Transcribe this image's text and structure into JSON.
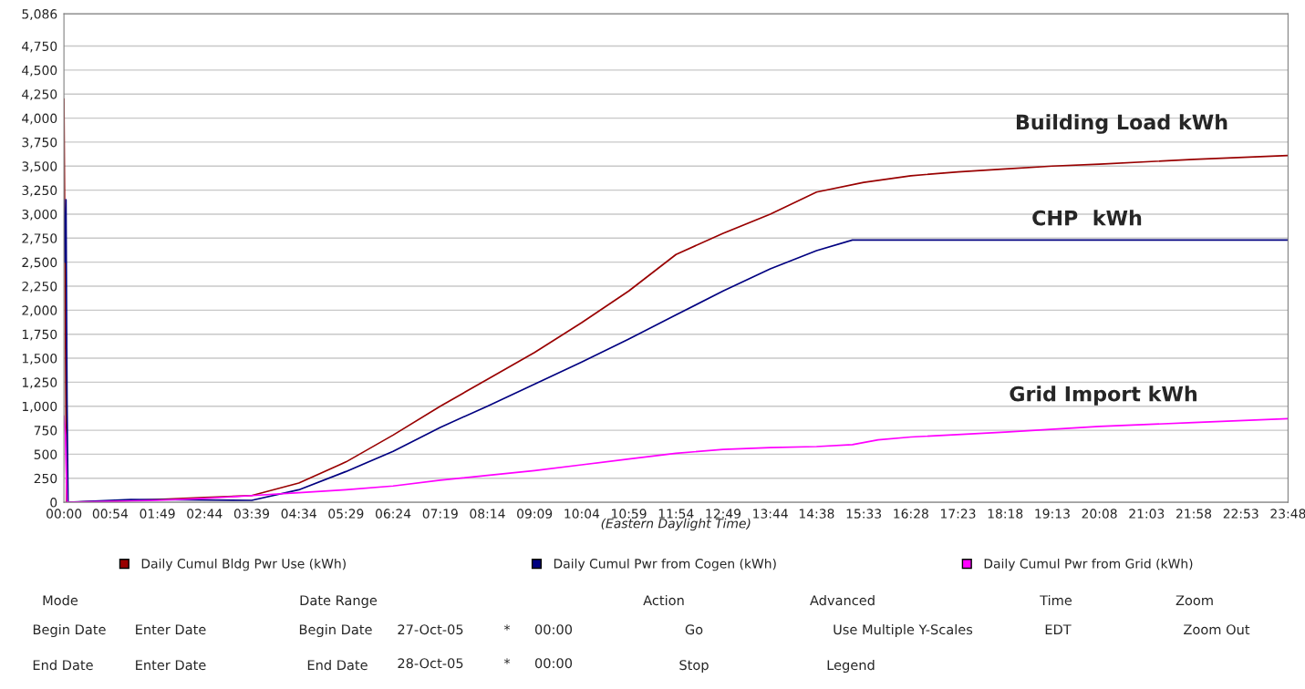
{
  "chart_data": {
    "type": "line",
    "xlabel": "(Eastern Daylight Time)",
    "grid": "y",
    "legend": "bottom",
    "marker": "none",
    "line_style": "solid",
    "xlim": [
      0,
      23.8
    ],
    "ylim": [
      0,
      5086
    ],
    "xticks": [
      {
        "value": 0,
        "label": "00:00"
      },
      {
        "value": 0.9,
        "label": "00:54"
      },
      {
        "value": 1.817,
        "label": "01:49"
      },
      {
        "value": 2.733,
        "label": "02:44"
      },
      {
        "value": 3.65,
        "label": "03:39"
      },
      {
        "value": 4.567,
        "label": "04:34"
      },
      {
        "value": 5.483,
        "label": "05:29"
      },
      {
        "value": 6.4,
        "label": "06:24"
      },
      {
        "value": 7.317,
        "label": "07:19"
      },
      {
        "value": 8.233,
        "label": "08:14"
      },
      {
        "value": 9.15,
        "label": "09:09"
      },
      {
        "value": 10.067,
        "label": "10:04"
      },
      {
        "value": 10.983,
        "label": "10:59"
      },
      {
        "value": 11.9,
        "label": "11:54"
      },
      {
        "value": 12.817,
        "label": "12:49"
      },
      {
        "value": 13.733,
        "label": "13:44"
      },
      {
        "value": 14.633,
        "label": "14:38"
      },
      {
        "value": 15.55,
        "label": "15:33"
      },
      {
        "value": 16.467,
        "label": "16:28"
      },
      {
        "value": 17.383,
        "label": "17:23"
      },
      {
        "value": 18.3,
        "label": "18:18"
      },
      {
        "value": 19.217,
        "label": "19:13"
      },
      {
        "value": 20.133,
        "label": "20:08"
      },
      {
        "value": 21.05,
        "label": "21:03"
      },
      {
        "value": 21.967,
        "label": "21:58"
      },
      {
        "value": 22.883,
        "label": "22:53"
      },
      {
        "value": 23.8,
        "label": "23:48"
      }
    ],
    "yticks": [
      0,
      250,
      500,
      750,
      {
        "value": 1000,
        "label": "1,000"
      },
      {
        "value": 1250,
        "label": "1,250"
      },
      {
        "value": 1500,
        "label": "1,500"
      },
      {
        "value": 1750,
        "label": "1,750"
      },
      {
        "value": 2000,
        "label": "2,000"
      },
      {
        "value": 2250,
        "label": "2,250"
      },
      {
        "value": 2500,
        "label": "2,500"
      },
      {
        "value": 2750,
        "label": "2,750"
      },
      {
        "value": 3000,
        "label": "3,000"
      },
      {
        "value": 3250,
        "label": "3,250"
      },
      {
        "value": 3500,
        "label": "3,500"
      },
      {
        "value": 3750,
        "label": "3,750"
      },
      {
        "value": 4000,
        "label": "4,000"
      },
      {
        "value": 4250,
        "label": "4,250"
      },
      {
        "value": 4500,
        "label": "4,500"
      },
      {
        "value": 4750,
        "label": "4,750"
      },
      {
        "value": 5086,
        "label": "5,086"
      }
    ],
    "series": [
      {
        "name": "Daily Cumul Bldg Pwr Use (kWh)",
        "color": "#990000",
        "x": [
          0,
          0.05,
          0.9,
          1.817,
          2.733,
          3.65,
          4.567,
          5.483,
          6.4,
          7.317,
          8.233,
          9.15,
          10.067,
          10.983,
          11.9,
          12.817,
          13.733,
          14.633,
          15.55,
          16.467,
          17.383,
          18.3,
          19.217,
          20.133,
          21.967,
          23.8
        ],
        "values": [
          4200,
          0,
          10,
          30,
          50,
          70,
          200,
          420,
          700,
          1000,
          1280,
          1560,
          1870,
          2200,
          2580,
          2800,
          3000,
          3230,
          3330,
          3400,
          3440,
          3470,
          3500,
          3520,
          3570,
          3610
        ]
      },
      {
        "name": "Daily Cumul Pwr from Cogen (kWh)",
        "color": "#000080",
        "x": [
          0,
          0.02,
          0.04,
          0.06,
          0.08,
          1.3,
          3.65,
          4.567,
          5.483,
          6.4,
          7.317,
          8.233,
          9.15,
          10.067,
          10.983,
          11.9,
          12.817,
          13.733,
          14.633,
          15.33,
          23.8
        ],
        "values": [
          3150,
          2500,
          3150,
          1050,
          0,
          30,
          20,
          130,
          320,
          530,
          780,
          1000,
          1230,
          1460,
          1700,
          1950,
          2200,
          2430,
          2620,
          2730,
          2730
        ]
      },
      {
        "name": "Daily Cumul Pwr from Grid (kWh)",
        "color": "#ff00ff",
        "x": [
          0,
          0.03,
          0.06,
          1.817,
          2.733,
          3.65,
          4.567,
          5.483,
          6.4,
          7.317,
          8.233,
          9.15,
          10.067,
          10.983,
          11.9,
          12.817,
          13.733,
          14.633,
          15.33,
          15.83,
          16.467,
          18.3,
          20.133,
          21.967,
          23.8
        ],
        "values": [
          900,
          700,
          0,
          20,
          40,
          70,
          100,
          130,
          170,
          230,
          280,
          330,
          390,
          450,
          510,
          550,
          570,
          580,
          600,
          650,
          680,
          730,
          790,
          830,
          870
        ]
      }
    ],
    "annotations": [
      "Building Load kWh",
      "CHP  kWh",
      "Grid Import kWh",
      "Mode",
      "Begin Date",
      "Enter Date",
      "End Date",
      "Enter Date",
      "Date Range",
      "Begin Date",
      "27-Oct-05",
      "*",
      "00:00",
      "End Date",
      "28-Oct-05",
      "*",
      "00:00",
      "Action",
      "Go",
      "Stop",
      "Advanced",
      "Use Multiple Y-Scales",
      "Legend",
      "Time",
      "EDT",
      "Zoom",
      "Zoom Out"
    ]
  }
}
